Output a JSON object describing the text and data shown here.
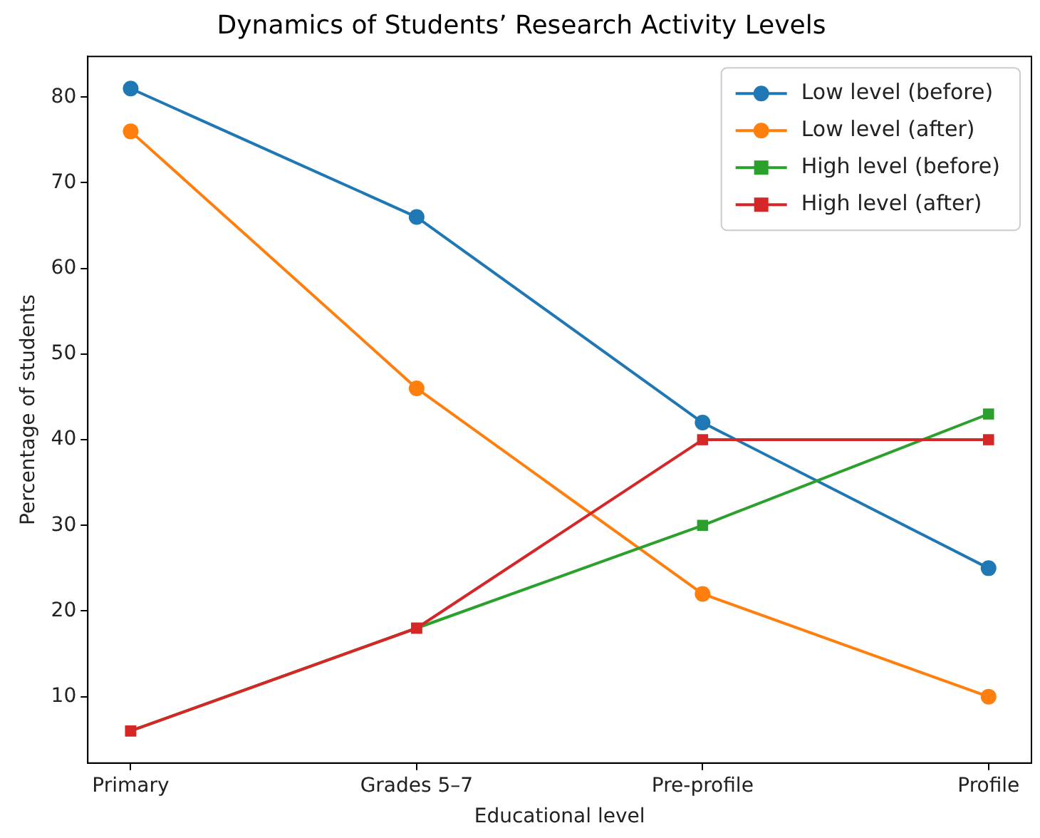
{
  "chart_data": {
    "type": "line",
    "title": "Dynamics of Students’ Research Activity Levels",
    "xlabel": "Educational level",
    "ylabel": "Percentage of students",
    "categories": [
      "Primary",
      "Grades 5–7",
      "Pre-profile",
      "Profile"
    ],
    "series": [
      {
        "name": "Low level (before)",
        "color": "#1f77b4",
        "marker": "circle",
        "values": [
          81,
          66,
          42,
          25
        ]
      },
      {
        "name": "Low level (after)",
        "color": "#ff7f0e",
        "marker": "circle",
        "values": [
          76,
          46,
          22,
          10
        ]
      },
      {
        "name": "High level (before)",
        "color": "#2ca02c",
        "marker": "square",
        "values": [
          6,
          18,
          30,
          43
        ]
      },
      {
        "name": "High level (after)",
        "color": "#d62728",
        "marker": "square",
        "values": [
          6,
          18,
          40,
          40
        ]
      }
    ],
    "ylim": [
      2.25,
      84.75
    ],
    "yticks": [
      10,
      20,
      30,
      40,
      50,
      60,
      70,
      80
    ],
    "grid": false,
    "legend": "top right",
    "line_style": "solid"
  }
}
